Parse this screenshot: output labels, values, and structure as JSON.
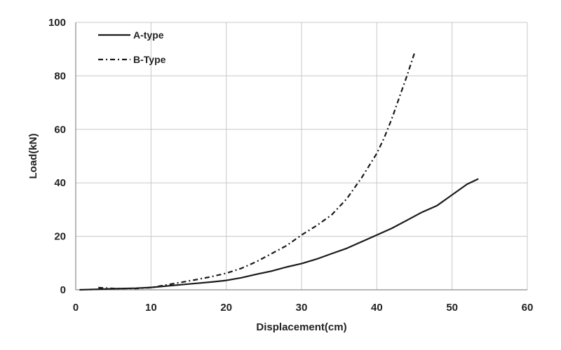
{
  "chart_data": {
    "type": "line",
    "title": "",
    "xlabel": "Displacement(cm)",
    "ylabel": "Load(kN)",
    "xlim": [
      0,
      60
    ],
    "ylim": [
      0,
      100
    ],
    "xticks": [
      0,
      10,
      20,
      30,
      40,
      50,
      60
    ],
    "yticks": [
      0,
      20,
      40,
      60,
      80,
      100
    ],
    "x_tick_labels": [
      "0",
      "10",
      "20",
      "30",
      "40",
      "50",
      "60"
    ],
    "y_tick_labels": [
      "0",
      "20",
      "40",
      "60",
      "80",
      "100"
    ],
    "grid": {
      "horizontal": true,
      "vertical": true
    },
    "legend_position": "top-left",
    "series": [
      {
        "name": "A-type",
        "line_style": "solid",
        "color": "#1a1a1a",
        "x": [
          0.5,
          3,
          5,
          8,
          10,
          12,
          14,
          16,
          18,
          20,
          22,
          24,
          26,
          28,
          30,
          32,
          34,
          36,
          38,
          40,
          42,
          44,
          46,
          48,
          50,
          52,
          53.5
        ],
        "y": [
          0,
          0.2,
          0.4,
          0.6,
          0.9,
          1.4,
          1.9,
          2.4,
          2.9,
          3.5,
          4.5,
          5.8,
          7,
          8.5,
          9.8,
          11.5,
          13.5,
          15.5,
          18,
          20.5,
          23,
          26,
          29,
          31.5,
          35.5,
          39.5,
          41.5
        ]
      },
      {
        "name": "B-Type",
        "line_style": "dash-dot",
        "color": "#1a1a1a",
        "x": [
          3,
          5,
          8,
          10,
          12,
          14,
          16,
          18,
          20,
          22,
          24,
          26,
          28,
          30,
          32,
          34,
          36,
          38,
          40,
          41,
          42,
          43,
          44,
          45
        ],
        "y": [
          0.8,
          0.5,
          0.5,
          0.8,
          1.8,
          2.8,
          3.8,
          4.9,
          6.2,
          8,
          10.5,
          13.5,
          16.5,
          20.5,
          24,
          28,
          34,
          42,
          51,
          57,
          64,
          72,
          80,
          88.5
        ]
      }
    ]
  }
}
